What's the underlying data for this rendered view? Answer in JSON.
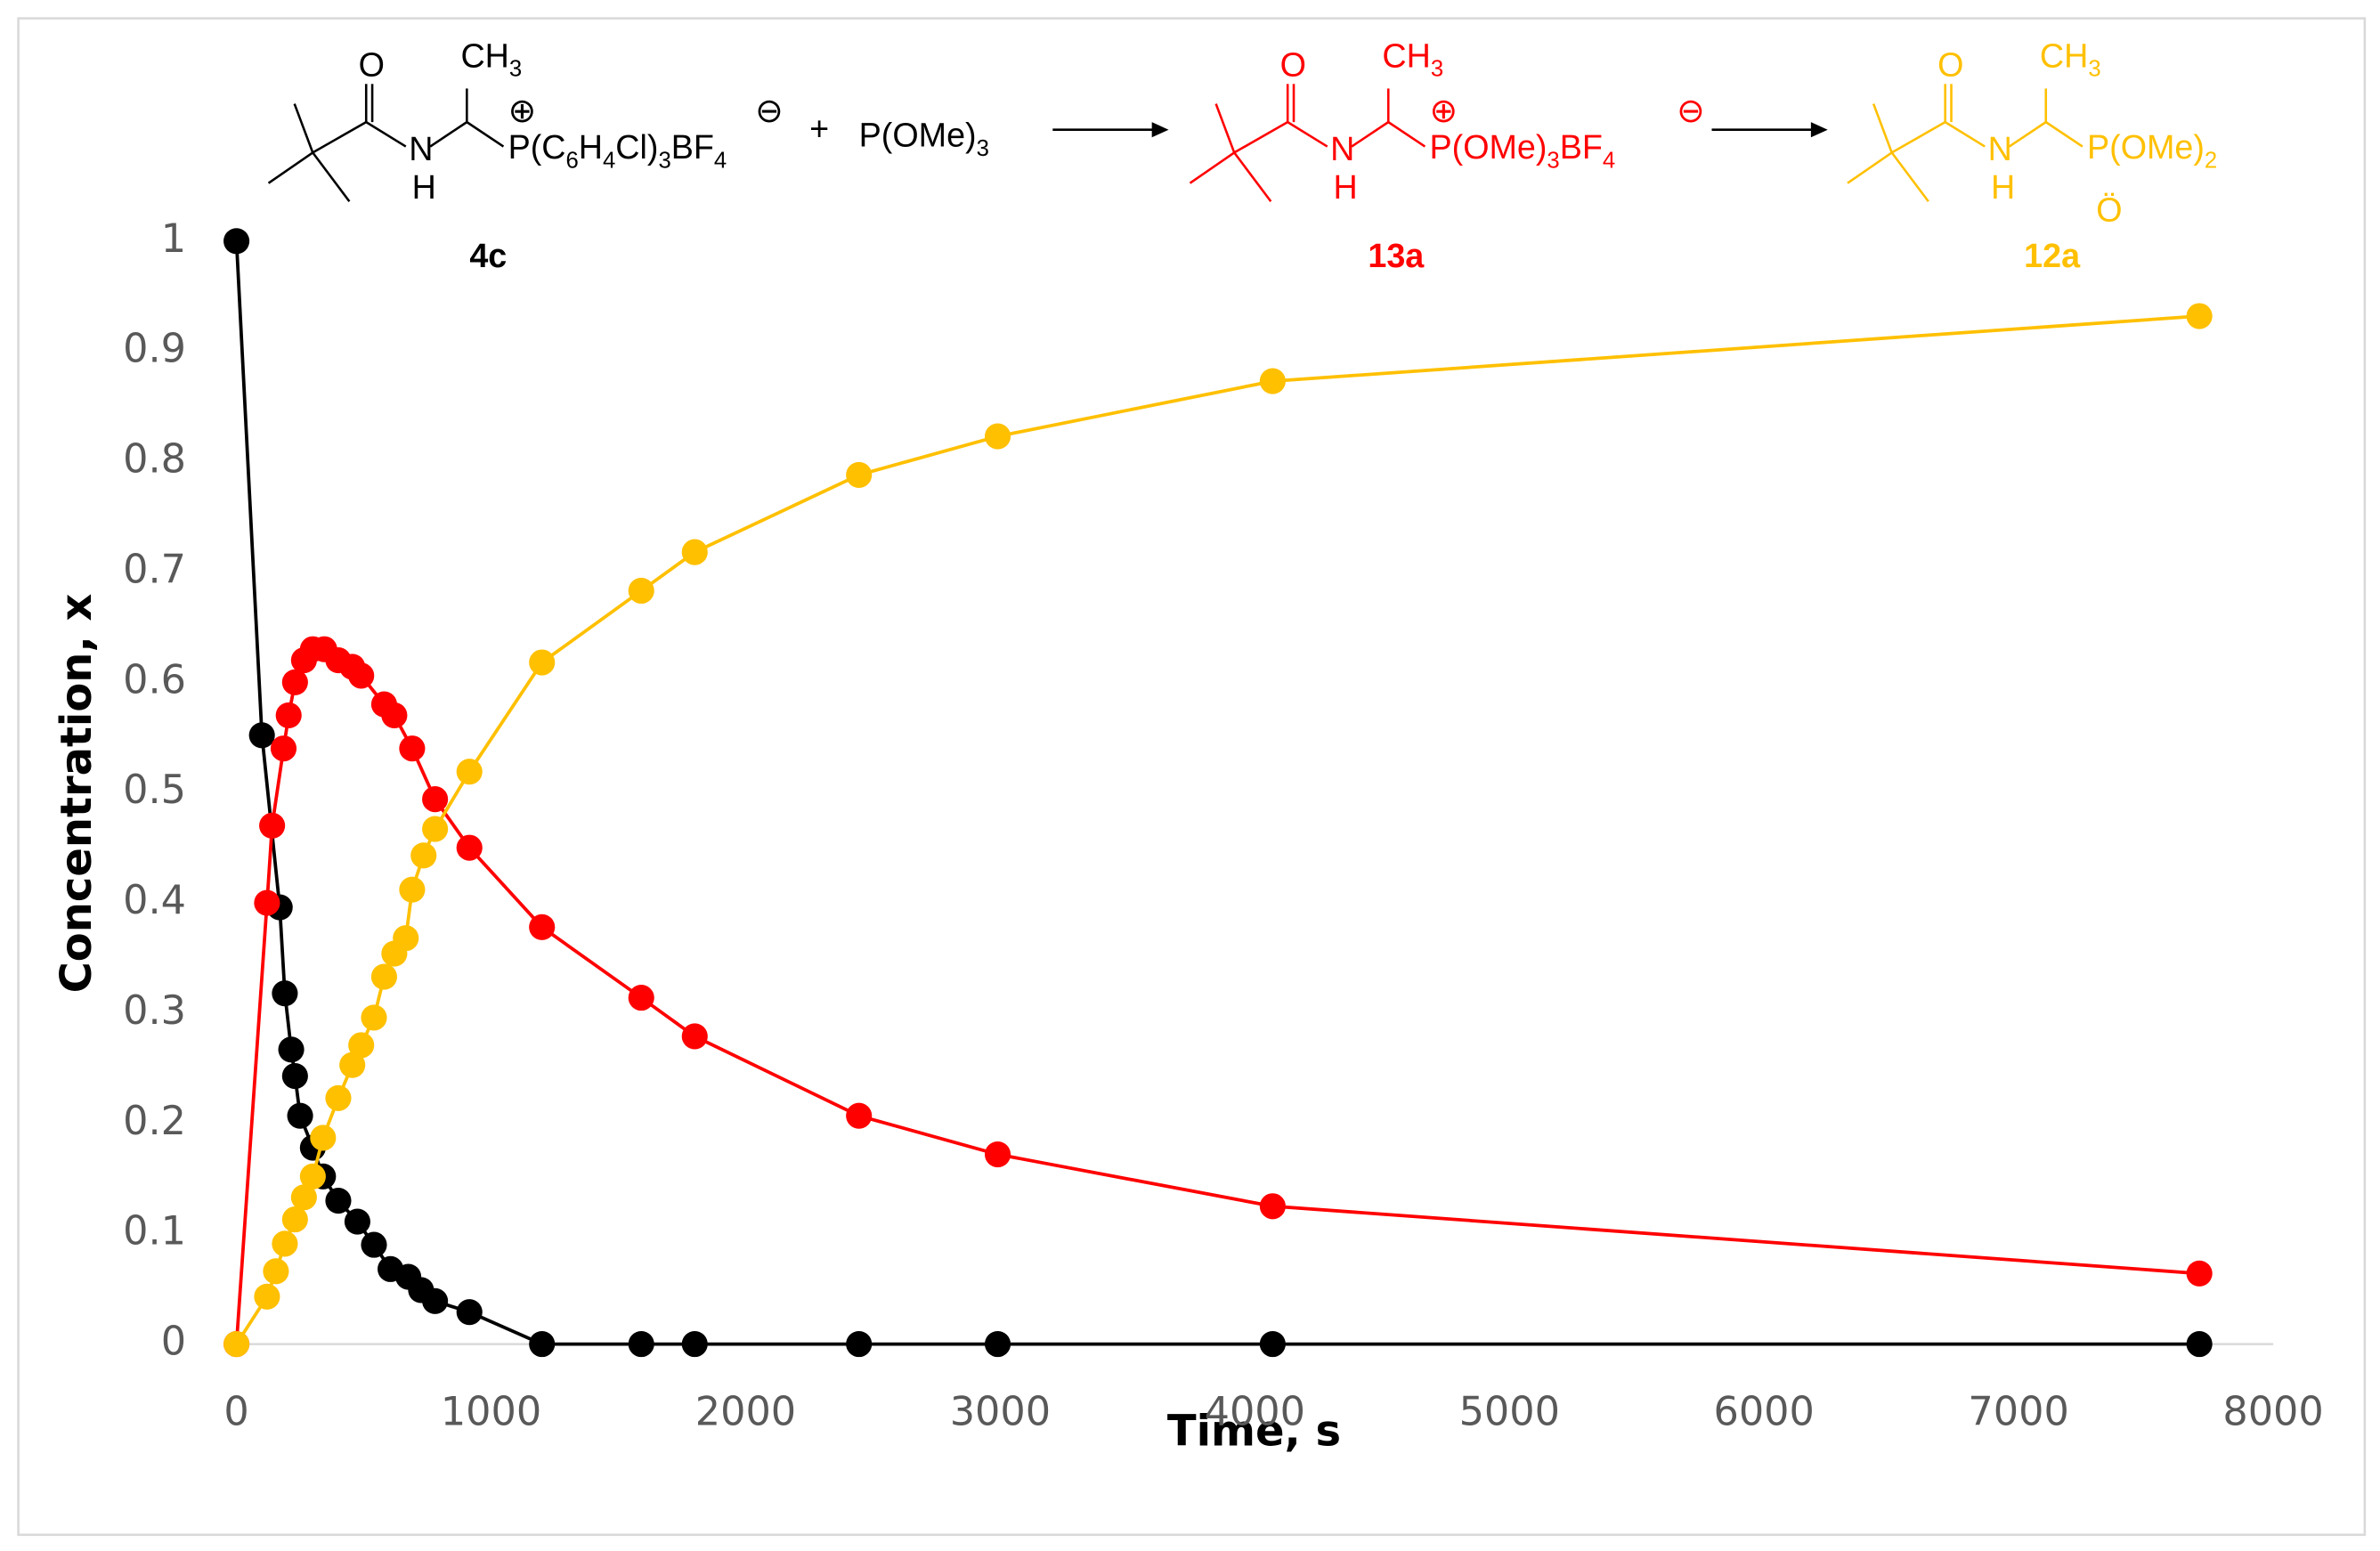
{
  "scheme": {
    "compounds": [
      {
        "color": "#000000",
        "texts": [
          "O",
          "CH3",
          "N",
          "H",
          "P(C6H4Cl)3BF4",
          "⊕",
          "⊖"
        ]
      },
      {
        "color": "#ff0000",
        "texts": [
          "O",
          "CH3",
          "N",
          "H",
          "P(OMe)3BF4",
          "⊕",
          "⊖"
        ]
      },
      {
        "color": "#ffc000",
        "texts": [
          "O",
          "CH3",
          "N",
          "H",
          "P(OMe)2",
          "Ö"
        ]
      }
    ],
    "plus": "+",
    "reagent": "P(OMe)3"
  },
  "chart_data": {
    "type": "scatter",
    "lines": true,
    "xlabel": "Time, s",
    "ylabel": "Concentration, x",
    "xlim": [
      0,
      8000
    ],
    "ylim": [
      0,
      1
    ],
    "xticks": [
      0,
      1000,
      2000,
      3000,
      4000,
      5000,
      6000,
      7000,
      8000
    ],
    "yticks": [
      0,
      0.1,
      0.2,
      0.3,
      0.4,
      0.5,
      0.6,
      0.7,
      0.8,
      0.9,
      1
    ],
    "grid": false,
    "series": [
      {
        "name": "4c",
        "color": "#000000",
        "x": [
          0,
          100,
          170,
          190,
          215,
          230,
          250,
          300,
          340,
          400,
          475,
          540,
          605,
          675,
          725,
          780,
          915,
          1200,
          1590,
          1800,
          2445,
          2990,
          4070,
          7710
        ],
        "values": [
          1,
          0.552,
          0.396,
          0.318,
          0.267,
          0.243,
          0.207,
          0.178,
          0.152,
          0.13,
          0.111,
          0.09,
          0.068,
          0.061,
          0.049,
          0.039,
          0.029,
          0,
          0,
          0,
          0,
          0,
          0,
          0
        ]
      },
      {
        "name": "13a",
        "color": "#ff0000",
        "x": [
          0,
          120,
          140,
          185,
          205,
          230,
          265,
          300,
          345,
          400,
          455,
          490,
          580,
          620,
          690,
          780,
          915,
          1200,
          1590,
          1800,
          2445,
          2990,
          4070,
          7710
        ],
        "values": [
          0,
          0.4,
          0.47,
          0.54,
          0.57,
          0.6,
          0.62,
          0.63,
          0.63,
          0.62,
          0.614,
          0.606,
          0.58,
          0.57,
          0.54,
          0.494,
          0.45,
          0.378,
          0.314,
          0.279,
          0.207,
          0.172,
          0.125,
          0.064
        ]
      },
      {
        "name": "12a",
        "color": "#ffc000",
        "x": [
          0,
          120,
          155,
          190,
          230,
          265,
          300,
          340,
          400,
          455,
          490,
          540,
          580,
          620,
          665,
          690,
          735,
          780,
          915,
          1200,
          1590,
          1800,
          2445,
          2990,
          4070,
          7710
        ],
        "values": [
          0,
          0.043,
          0.066,
          0.091,
          0.113,
          0.133,
          0.152,
          0.187,
          0.223,
          0.253,
          0.271,
          0.296,
          0.333,
          0.354,
          0.368,
          0.412,
          0.443,
          0.467,
          0.519,
          0.618,
          0.683,
          0.718,
          0.788,
          0.823,
          0.873,
          0.932
        ]
      }
    ]
  }
}
